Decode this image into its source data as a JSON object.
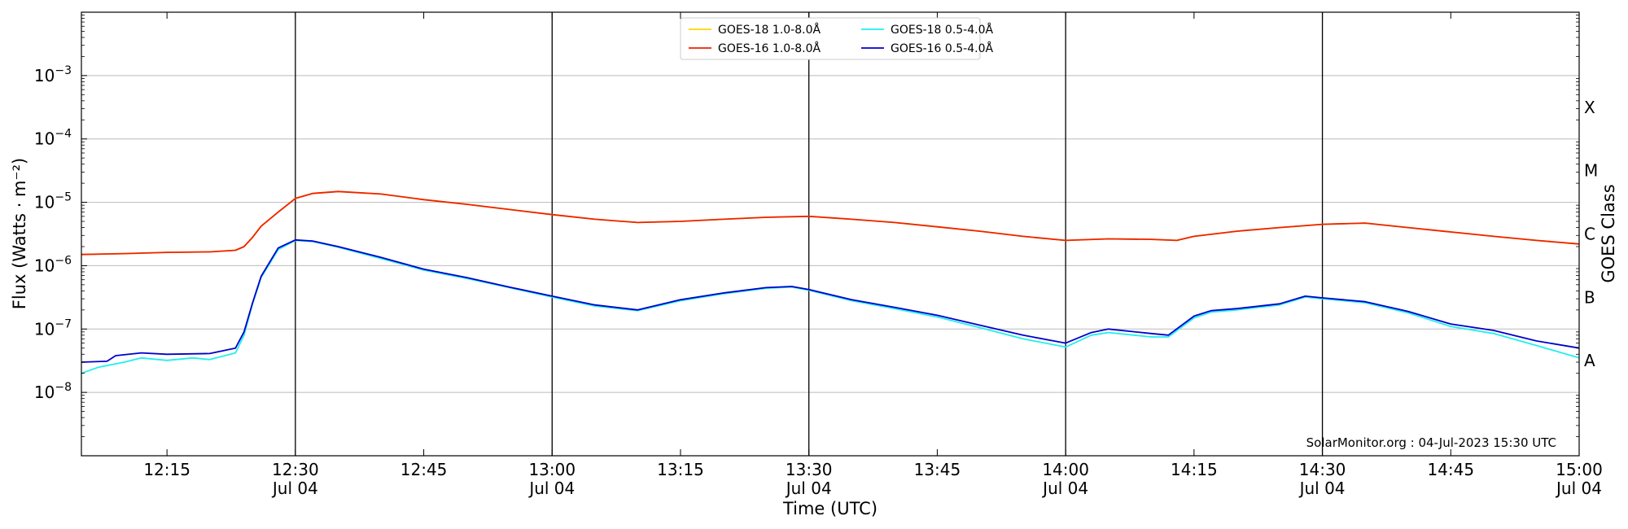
{
  "chart_data": {
    "type": "line",
    "xlabel": "Time (UTC)",
    "ylabel": "Flux (Watts · m⁻²)",
    "right_label": "GOES Class",
    "y_scale": "log",
    "ylim": [
      1e-09,
      0.01
    ],
    "x_range": [
      "12:05",
      "15:00"
    ],
    "grid": "horizontal",
    "legend_position": "top-center",
    "watermark": "SolarMonitor.org : 04-Jul-2023 15:30 UTC",
    "y_ticks": [
      {
        "value": 0.001,
        "label": "10",
        "exp": "−3"
      },
      {
        "value": 0.0001,
        "label": "10",
        "exp": "−4"
      },
      {
        "value": 1e-05,
        "label": "10",
        "exp": "−5"
      },
      {
        "value": 1e-06,
        "label": "10",
        "exp": "−6"
      },
      {
        "value": 1e-07,
        "label": "10",
        "exp": "−7"
      },
      {
        "value": 1e-08,
        "label": "10",
        "exp": "−8"
      }
    ],
    "x_ticks": [
      {
        "time": "12:15",
        "label": "12:15",
        "sub": ""
      },
      {
        "time": "12:30",
        "label": "12:30",
        "sub": "Jul 04"
      },
      {
        "time": "12:45",
        "label": "12:45",
        "sub": ""
      },
      {
        "time": "13:00",
        "label": "13:00",
        "sub": "Jul 04"
      },
      {
        "time": "13:15",
        "label": "13:15",
        "sub": ""
      },
      {
        "time": "13:30",
        "label": "13:30",
        "sub": "Jul 04"
      },
      {
        "time": "13:45",
        "label": "13:45",
        "sub": ""
      },
      {
        "time": "14:00",
        "label": "14:00",
        "sub": "Jul 04"
      },
      {
        "time": "14:15",
        "label": "14:15",
        "sub": ""
      },
      {
        "time": "14:30",
        "label": "14:30",
        "sub": "Jul 04"
      },
      {
        "time": "14:45",
        "label": "14:45",
        "sub": ""
      },
      {
        "time": "15:00",
        "label": "15:00",
        "sub": "Jul 04"
      }
    ],
    "goes_classes": [
      {
        "label": "X",
        "value": 0.000316
      },
      {
        "label": "M",
        "value": 3.16e-05
      },
      {
        "label": "C",
        "value": 3.16e-06
      },
      {
        "label": "B",
        "value": 3.16e-07
      },
      {
        "label": "A",
        "value": 3.16e-08
      }
    ],
    "series": [
      {
        "name": "GOES-18 1.0-8.0Å",
        "color": "#ffd700",
        "points": [
          [
            "12:05",
            1.5e-06
          ],
          [
            "12:10",
            1.55e-06
          ],
          [
            "12:15",
            1.62e-06
          ],
          [
            "12:20",
            1.65e-06
          ],
          [
            "12:23",
            1.75e-06
          ],
          [
            "12:24",
            2e-06
          ],
          [
            "12:25",
            2.8e-06
          ],
          [
            "12:26",
            4.2e-06
          ],
          [
            "12:28",
            7e-06
          ],
          [
            "12:30",
            1.15e-05
          ],
          [
            "12:32",
            1.38e-05
          ],
          [
            "12:35",
            1.48e-05
          ],
          [
            "12:40",
            1.35e-05
          ],
          [
            "12:45",
            1.1e-05
          ],
          [
            "12:50",
            9.3e-06
          ],
          [
            "12:55",
            7.7e-06
          ],
          [
            "13:00",
            6.4e-06
          ],
          [
            "13:05",
            5.4e-06
          ],
          [
            "13:10",
            4.8e-06
          ],
          [
            "13:15",
            5e-06
          ],
          [
            "13:20",
            5.4e-06
          ],
          [
            "13:25",
            5.8e-06
          ],
          [
            "13:30",
            6e-06
          ],
          [
            "13:35",
            5.4e-06
          ],
          [
            "13:40",
            4.8e-06
          ],
          [
            "13:45",
            4.1e-06
          ],
          [
            "13:50",
            3.5e-06
          ],
          [
            "13:55",
            2.9e-06
          ],
          [
            "14:00",
            2.5e-06
          ],
          [
            "14:05",
            2.65e-06
          ],
          [
            "14:10",
            2.6e-06
          ],
          [
            "14:13",
            2.5e-06
          ],
          [
            "14:15",
            2.9e-06
          ],
          [
            "14:20",
            3.5e-06
          ],
          [
            "14:25",
            4e-06
          ],
          [
            "14:30",
            4.5e-06
          ],
          [
            "14:35",
            4.7e-06
          ],
          [
            "14:40",
            4e-06
          ],
          [
            "14:45",
            3.4e-06
          ],
          [
            "14:50",
            2.9e-06
          ],
          [
            "14:55",
            2.5e-06
          ],
          [
            "15:00",
            2.2e-06
          ]
        ]
      },
      {
        "name": "GOES-16 1.0-8.0Å",
        "color": "#ee2200",
        "points": [
          [
            "12:05",
            1.5e-06
          ],
          [
            "12:10",
            1.55e-06
          ],
          [
            "12:15",
            1.62e-06
          ],
          [
            "12:20",
            1.65e-06
          ],
          [
            "12:23",
            1.75e-06
          ],
          [
            "12:24",
            2e-06
          ],
          [
            "12:25",
            2.8e-06
          ],
          [
            "12:26",
            4.2e-06
          ],
          [
            "12:28",
            7e-06
          ],
          [
            "12:30",
            1.15e-05
          ],
          [
            "12:32",
            1.38e-05
          ],
          [
            "12:35",
            1.48e-05
          ],
          [
            "12:40",
            1.35e-05
          ],
          [
            "12:45",
            1.1e-05
          ],
          [
            "12:50",
            9.3e-06
          ],
          [
            "12:55",
            7.7e-06
          ],
          [
            "13:00",
            6.4e-06
          ],
          [
            "13:05",
            5.4e-06
          ],
          [
            "13:10",
            4.8e-06
          ],
          [
            "13:15",
            5e-06
          ],
          [
            "13:20",
            5.4e-06
          ],
          [
            "13:25",
            5.8e-06
          ],
          [
            "13:30",
            6e-06
          ],
          [
            "13:35",
            5.4e-06
          ],
          [
            "13:40",
            4.8e-06
          ],
          [
            "13:45",
            4.1e-06
          ],
          [
            "13:50",
            3.5e-06
          ],
          [
            "13:55",
            2.9e-06
          ],
          [
            "14:00",
            2.5e-06
          ],
          [
            "14:05",
            2.65e-06
          ],
          [
            "14:10",
            2.6e-06
          ],
          [
            "14:13",
            2.5e-06
          ],
          [
            "14:15",
            2.9e-06
          ],
          [
            "14:20",
            3.5e-06
          ],
          [
            "14:25",
            4e-06
          ],
          [
            "14:30",
            4.5e-06
          ],
          [
            "14:35",
            4.7e-06
          ],
          [
            "14:40",
            4e-06
          ],
          [
            "14:45",
            3.4e-06
          ],
          [
            "14:50",
            2.9e-06
          ],
          [
            "14:55",
            2.5e-06
          ],
          [
            "15:00",
            2.2e-06
          ]
        ]
      },
      {
        "name": "GOES-18 0.5-4.0Å",
        "color": "#22eeee",
        "points": [
          [
            "12:05",
            2e-08
          ],
          [
            "12:07",
            2.5e-08
          ],
          [
            "12:10",
            3e-08
          ],
          [
            "12:12",
            3.5e-08
          ],
          [
            "12:15",
            3.2e-08
          ],
          [
            "12:18",
            3.5e-08
          ],
          [
            "12:20",
            3.3e-08
          ],
          [
            "12:23",
            4.2e-08
          ],
          [
            "12:24",
            8e-08
          ],
          [
            "12:25",
            2.5e-07
          ],
          [
            "12:26",
            6.5e-07
          ],
          [
            "12:28",
            1.8e-06
          ],
          [
            "12:30",
            2.5e-06
          ],
          [
            "12:32",
            2.4e-06
          ],
          [
            "12:35",
            1.95e-06
          ],
          [
            "12:40",
            1.3e-06
          ],
          [
            "12:45",
            8.5e-07
          ],
          [
            "12:50",
            6.3e-07
          ],
          [
            "12:55",
            4.5e-07
          ],
          [
            "13:00",
            3.2e-07
          ],
          [
            "13:05",
            2.3e-07
          ],
          [
            "13:10",
            1.95e-07
          ],
          [
            "13:15",
            2.8e-07
          ],
          [
            "13:20",
            3.6e-07
          ],
          [
            "13:25",
            4.4e-07
          ],
          [
            "13:28",
            4.6e-07
          ],
          [
            "13:30",
            4.1e-07
          ],
          [
            "13:35",
            2.8e-07
          ],
          [
            "13:40",
            2.1e-07
          ],
          [
            "13:45",
            1.55e-07
          ],
          [
            "13:50",
            1.05e-07
          ],
          [
            "13:55",
            7e-08
          ],
          [
            "14:00",
            5.2e-08
          ],
          [
            "14:03",
            8e-08
          ],
          [
            "14:05",
            8.8e-08
          ],
          [
            "14:10",
            7.5e-08
          ],
          [
            "14:12",
            7.5e-08
          ],
          [
            "14:15",
            1.5e-07
          ],
          [
            "14:17",
            1.85e-07
          ],
          [
            "14:20",
            2e-07
          ],
          [
            "14:25",
            2.4e-07
          ],
          [
            "14:28",
            3.2e-07
          ],
          [
            "14:30",
            3e-07
          ],
          [
            "14:35",
            2.6e-07
          ],
          [
            "14:40",
            1.8e-07
          ],
          [
            "14:45",
            1.1e-07
          ],
          [
            "14:50",
            8.5e-08
          ],
          [
            "14:55",
            5.5e-08
          ],
          [
            "15:00",
            3.5e-08
          ]
        ]
      },
      {
        "name": "GOES-16 0.5-4.0Å",
        "color": "#0000cc",
        "points": [
          [
            "12:05",
            3e-08
          ],
          [
            "12:08",
            3.1e-08
          ],
          [
            "12:09",
            3.8e-08
          ],
          [
            "12:12",
            4.2e-08
          ],
          [
            "12:15",
            4e-08
          ],
          [
            "12:20",
            4.1e-08
          ],
          [
            "12:23",
            5e-08
          ],
          [
            "12:24",
            9e-08
          ],
          [
            "12:25",
            2.6e-07
          ],
          [
            "12:26",
            6.8e-07
          ],
          [
            "12:28",
            1.9e-06
          ],
          [
            "12:30",
            2.55e-06
          ],
          [
            "12:32",
            2.45e-06
          ],
          [
            "12:35",
            2e-06
          ],
          [
            "12:40",
            1.35e-06
          ],
          [
            "12:45",
            8.8e-07
          ],
          [
            "12:50",
            6.5e-07
          ],
          [
            "12:55",
            4.6e-07
          ],
          [
            "13:00",
            3.3e-07
          ],
          [
            "13:05",
            2.4e-07
          ],
          [
            "13:10",
            2e-07
          ],
          [
            "13:15",
            2.9e-07
          ],
          [
            "13:20",
            3.7e-07
          ],
          [
            "13:25",
            4.5e-07
          ],
          [
            "13:28",
            4.7e-07
          ],
          [
            "13:30",
            4.2e-07
          ],
          [
            "13:35",
            2.9e-07
          ],
          [
            "13:40",
            2.2e-07
          ],
          [
            "13:45",
            1.65e-07
          ],
          [
            "13:50",
            1.15e-07
          ],
          [
            "13:55",
            8e-08
          ],
          [
            "14:00",
            6e-08
          ],
          [
            "14:03",
            8.8e-08
          ],
          [
            "14:05",
            1e-07
          ],
          [
            "14:10",
            8.5e-08
          ],
          [
            "14:12",
            8e-08
          ],
          [
            "14:15",
            1.6e-07
          ],
          [
            "14:17",
            1.95e-07
          ],
          [
            "14:20",
            2.1e-07
          ],
          [
            "14:25",
            2.5e-07
          ],
          [
            "14:28",
            3.3e-07
          ],
          [
            "14:30",
            3.1e-07
          ],
          [
            "14:35",
            2.7e-07
          ],
          [
            "14:40",
            1.9e-07
          ],
          [
            "14:45",
            1.2e-07
          ],
          [
            "14:50",
            9.5e-08
          ],
          [
            "14:55",
            6.5e-08
          ],
          [
            "15:00",
            5e-08
          ]
        ]
      }
    ]
  }
}
